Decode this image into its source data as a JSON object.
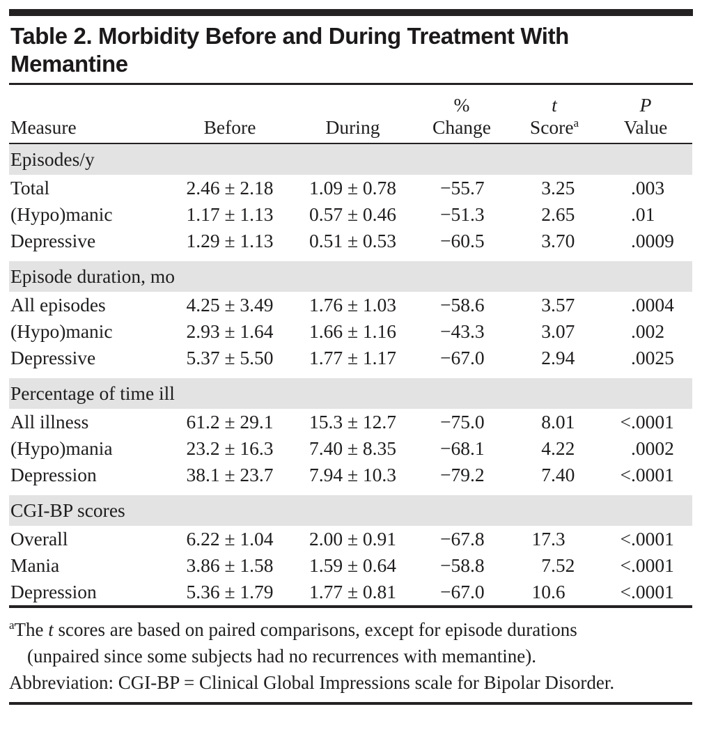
{
  "title": {
    "line1": "Table 2. Morbidity Before and During Treatment With",
    "line2": "Memantine"
  },
  "header": {
    "measure": "Measure",
    "before": "Before",
    "during": "During",
    "change_top": "%",
    "change_bottom": "Change",
    "t_top": "t",
    "t_bottom": "Score",
    "t_superscript": "a",
    "p_top": "P",
    "p_bottom": "Value"
  },
  "sections": [
    {
      "header": "Episodes/y",
      "rows": [
        {
          "measure": "Total",
          "before": "2.46 ± 2.18",
          "during": "1.09 ± 0.78",
          "change": "−55.7",
          "t": "3.25",
          "p": ".003"
        },
        {
          "measure": "(Hypo)manic",
          "before": "1.17 ± 1.13",
          "during": "0.57 ± 0.46",
          "change": "−51.3",
          "t": "2.65",
          "p": ".01"
        },
        {
          "measure": "Depressive",
          "before": "1.29 ± 1.13",
          "during": "0.51 ± 0.53",
          "change": "−60.5",
          "t": "3.70",
          "p": ".0009"
        }
      ]
    },
    {
      "header": "Episode duration, mo",
      "rows": [
        {
          "measure": "All episodes",
          "before": "4.25 ± 3.49",
          "during": "1.76 ± 1.03",
          "change": "−58.6",
          "t": "3.57",
          "p": ".0004"
        },
        {
          "measure": "(Hypo)manic",
          "before": "2.93 ± 1.64",
          "during": "1.66 ± 1.16",
          "change": "−43.3",
          "t": "3.07",
          "p": ".002"
        },
        {
          "measure": "Depressive",
          "before": "5.37 ± 5.50",
          "during": "1.77 ± 1.17",
          "change": "−67.0",
          "t": "2.94",
          "p": ".0025"
        }
      ]
    },
    {
      "header": "Percentage of time ill",
      "rows": [
        {
          "measure": "All illness",
          "before": "61.2 ± 29.1",
          "during": "15.3 ± 12.7",
          "change": "−75.0",
          "t": "8.01",
          "p": "<.0001"
        },
        {
          "measure": "(Hypo)mania",
          "before": "23.2 ± 16.3",
          "during": "7.40 ± 8.35",
          "change": "−68.1",
          "t": "4.22",
          "p": ".0002"
        },
        {
          "measure": "Depression",
          "before": "38.1 ± 23.7",
          "during": "7.94 ± 10.3",
          "change": "−79.2",
          "t": "7.40",
          "p": "<.0001"
        }
      ]
    },
    {
      "header": "CGI-BP scores",
      "rows": [
        {
          "measure": "Overall",
          "before": "6.22 ± 1.04",
          "during": "2.00 ± 0.91",
          "change": "−67.8",
          "t": "17.3",
          "p": "<.0001"
        },
        {
          "measure": "Mania",
          "before": "3.86 ± 1.58",
          "during": "1.59 ± 0.64",
          "change": "−58.8",
          "t": "7.52",
          "p": "<.0001"
        },
        {
          "measure": "Depression",
          "before": "5.36 ± 1.79",
          "during": "1.77 ± 0.81",
          "change": "−67.0",
          "t": "10.6",
          "p": "<.0001"
        }
      ]
    }
  ],
  "footnotes": {
    "marker": "a",
    "note_pre": "The ",
    "note_italic": "t",
    "note_rest": " scores are based on paired comparisons, except for episode durations (unpaired since some subjects had no recurrences with memantine).",
    "abbreviation": "Abbreviation: CGI-BP = Clinical Global Impressions scale for Bipolar Disorder."
  },
  "colors": {
    "section_band": "#e3e3e4",
    "rule": "#242122",
    "text": "#1f1d1e"
  }
}
